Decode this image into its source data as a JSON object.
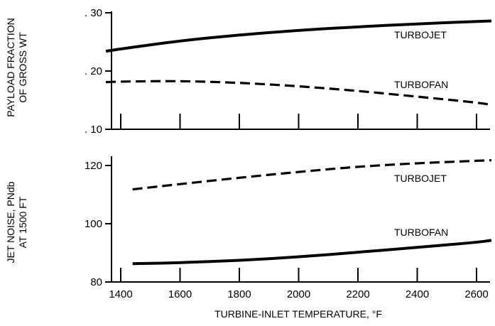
{
  "chart_data": [
    {
      "type": "line",
      "ylabel_lines": [
        "PAYLOAD FRACTION",
        "OF GROSS WT"
      ],
      "ylim": [
        0.1,
        0.3
      ],
      "yticks": [
        {
          "value": 0.1,
          "label": ". 10"
        },
        {
          "value": 0.2,
          "label": ". 20"
        },
        {
          "value": 0.3,
          "label": ". 30"
        }
      ],
      "xlim": [
        1400,
        2600
      ],
      "xticks": [
        1400,
        1600,
        1800,
        2000,
        2200,
        2400,
        2600
      ],
      "series": [
        {
          "name": "TURBOFAN",
          "style": "solid",
          "x": [
            1350,
            1400,
            1600,
            1800,
            2000,
            2200,
            2400,
            2600,
            2650
          ],
          "y": [
            0.234,
            0.238,
            0.252,
            0.262,
            0.27,
            0.276,
            0.281,
            0.285,
            0.286
          ]
        },
        {
          "name": "TURBOJET",
          "style": "dashed",
          "x": [
            1350,
            1400,
            1600,
            1800,
            2000,
            2200,
            2400,
            2600,
            2650
          ],
          "y": [
            0.181,
            0.182,
            0.183,
            0.18,
            0.174,
            0.166,
            0.156,
            0.146,
            0.142
          ]
        }
      ]
    },
    {
      "type": "line",
      "ylabel_lines": [
        "JET NOISE, PNdb",
        "AT 1500 FT"
      ],
      "ylim": [
        80,
        120
      ],
      "yticks": [
        {
          "value": 80,
          "label": "80"
        },
        {
          "value": 100,
          "label": "100"
        },
        {
          "value": 120,
          "label": "120"
        }
      ],
      "xlabel": "TURBINE-INLET TEMPERATURE,  °F",
      "xlim": [
        1400,
        2600
      ],
      "xticks": [
        1400,
        1600,
        1800,
        2000,
        2200,
        2400,
        2600
      ],
      "series": [
        {
          "name": "TURBOJET",
          "style": "dashed",
          "x": [
            1440,
            1600,
            1800,
            2000,
            2200,
            2400,
            2600,
            2650
          ],
          "y": [
            111.8,
            113.6,
            115.8,
            117.8,
            119.6,
            120.8,
            121.6,
            121.8
          ]
        },
        {
          "name": "TURBOFAN",
          "style": "solid",
          "x": [
            1440,
            1600,
            1800,
            2000,
            2200,
            2400,
            2600,
            2650
          ],
          "y": [
            86.3,
            86.6,
            87.4,
            88.6,
            90.2,
            91.9,
            93.6,
            94.3
          ]
        }
      ]
    }
  ]
}
